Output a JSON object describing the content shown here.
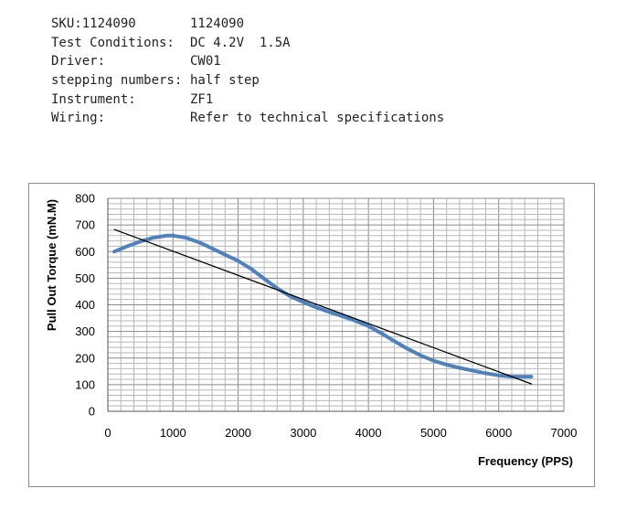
{
  "specs": [
    {
      "label": "SKU:1124090",
      "value": "1124090"
    },
    {
      "label": "Test Conditions:",
      "value": "DC 4.2V  1.5A"
    },
    {
      "label": "Driver:",
      "value": "CW01"
    },
    {
      "label": "stepping numbers:",
      "value": "half step"
    },
    {
      "label": "Instrument:",
      "value": "ZF1"
    },
    {
      "label": "Wiring:",
      "value": "Refer to technical specifications"
    }
  ],
  "chart_data": {
    "type": "line",
    "title": "",
    "xlabel": "Frequency (PPS)",
    "ylabel": "Pull Out Torque (mN.M)",
    "xlim": [
      0,
      7000
    ],
    "ylim": [
      0,
      800
    ],
    "x_ticks": [
      0,
      1000,
      2000,
      3000,
      4000,
      5000,
      6000,
      7000
    ],
    "y_ticks": [
      0,
      100,
      200,
      300,
      400,
      500,
      600,
      700,
      800
    ],
    "grid": true,
    "series": [
      {
        "color": "#4f81bd",
        "x": [
          100,
          300,
          500,
          700,
          900,
          1000,
          1200,
          1400,
          1600,
          1800,
          2000,
          2200,
          2400,
          2600,
          2800,
          3000,
          3200,
          3400,
          3600,
          3800,
          4000,
          4200,
          4400,
          4600,
          4800,
          5000,
          5200,
          5400,
          5600,
          5800,
          6000,
          6200,
          6500
        ],
        "y": [
          600,
          620,
          638,
          652,
          660,
          660,
          652,
          635,
          612,
          588,
          565,
          535,
          498,
          462,
          432,
          410,
          390,
          373,
          357,
          340,
          320,
          293,
          263,
          235,
          210,
          190,
          175,
          163,
          153,
          143,
          135,
          130,
          130
        ]
      },
      {
        "color": "#000000",
        "x": [
          100,
          6500
        ],
        "y": [
          683,
          103
        ]
      }
    ]
  }
}
